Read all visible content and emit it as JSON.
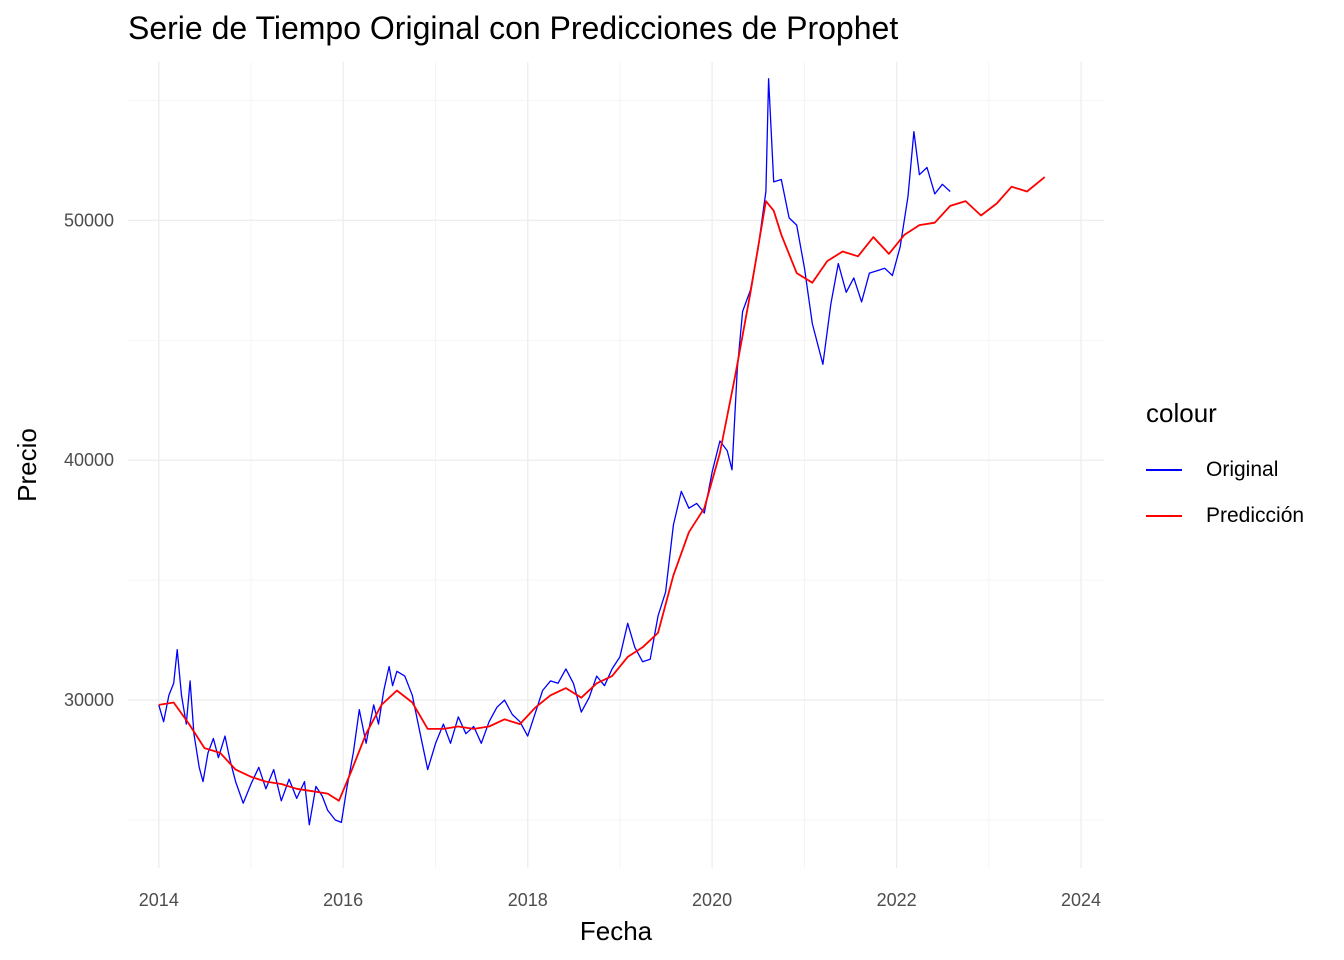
{
  "chart_data": {
    "type": "line",
    "title": "Serie de Tiempo Original con Predicciones de Prophet",
    "xlabel": "Fecha",
    "ylabel": "Precio",
    "x_ticks": [
      "2014",
      "2016",
      "2018",
      "2020",
      "2022",
      "2024"
    ],
    "y_ticks": [
      "30000",
      "40000",
      "50000"
    ],
    "xlim": [
      "2013-09-01",
      "2024-04-01"
    ],
    "ylim": [
      23000,
      56600
    ],
    "grid": true,
    "legend": {
      "title": "colour",
      "placement": "right"
    },
    "series": [
      {
        "name": "Original",
        "color": "#0000ff",
        "points": [
          [
            "2014-01-01",
            29800
          ],
          [
            "2014-01-20",
            29100
          ],
          [
            "2014-02-10",
            30200
          ],
          [
            "2014-03-01",
            30700
          ],
          [
            "2014-03-15",
            32100
          ],
          [
            "2014-04-01",
            30200
          ],
          [
            "2014-04-20",
            29000
          ],
          [
            "2014-05-05",
            30800
          ],
          [
            "2014-05-20",
            28600
          ],
          [
            "2014-06-10",
            27200
          ],
          [
            "2014-06-25",
            26600
          ],
          [
            "2014-07-15",
            27800
          ],
          [
            "2014-08-05",
            28400
          ],
          [
            "2014-08-25",
            27600
          ],
          [
            "2014-09-20",
            28500
          ],
          [
            "2014-10-10",
            27500
          ],
          [
            "2014-11-01",
            26600
          ],
          [
            "2014-12-01",
            25700
          ],
          [
            "2015-01-01",
            26500
          ],
          [
            "2015-02-01",
            27200
          ],
          [
            "2015-03-01",
            26300
          ],
          [
            "2015-04-01",
            27100
          ],
          [
            "2015-05-01",
            25800
          ],
          [
            "2015-06-01",
            26700
          ],
          [
            "2015-07-01",
            25900
          ],
          [
            "2015-08-01",
            26600
          ],
          [
            "2015-08-20",
            24800
          ],
          [
            "2015-09-15",
            26400
          ],
          [
            "2015-10-10",
            26000
          ],
          [
            "2015-11-01",
            25400
          ],
          [
            "2015-12-01",
            25000
          ],
          [
            "2015-12-25",
            24900
          ],
          [
            "2016-01-15",
            26300
          ],
          [
            "2016-02-10",
            27800
          ],
          [
            "2016-03-05",
            29600
          ],
          [
            "2016-04-01",
            28200
          ],
          [
            "2016-05-01",
            29800
          ],
          [
            "2016-05-20",
            29000
          ],
          [
            "2016-06-10",
            30400
          ],
          [
            "2016-07-01",
            31400
          ],
          [
            "2016-07-15",
            30600
          ],
          [
            "2016-08-01",
            31200
          ],
          [
            "2016-09-01",
            31000
          ],
          [
            "2016-10-01",
            30200
          ],
          [
            "2016-11-01",
            28600
          ],
          [
            "2016-12-01",
            27100
          ],
          [
            "2017-01-01",
            28200
          ],
          [
            "2017-02-01",
            29000
          ],
          [
            "2017-03-01",
            28200
          ],
          [
            "2017-04-01",
            29300
          ],
          [
            "2017-05-01",
            28600
          ],
          [
            "2017-06-01",
            28900
          ],
          [
            "2017-07-01",
            28200
          ],
          [
            "2017-08-01",
            29100
          ],
          [
            "2017-09-01",
            29700
          ],
          [
            "2017-10-01",
            30000
          ],
          [
            "2017-11-01",
            29400
          ],
          [
            "2017-12-01",
            29100
          ],
          [
            "2018-01-01",
            28500
          ],
          [
            "2018-02-01",
            29500
          ],
          [
            "2018-03-01",
            30400
          ],
          [
            "2018-04-01",
            30800
          ],
          [
            "2018-05-01",
            30700
          ],
          [
            "2018-06-01",
            31300
          ],
          [
            "2018-07-01",
            30700
          ],
          [
            "2018-08-01",
            29500
          ],
          [
            "2018-09-01",
            30100
          ],
          [
            "2018-10-01",
            31000
          ],
          [
            "2018-11-01",
            30600
          ],
          [
            "2018-12-01",
            31300
          ],
          [
            "2019-01-01",
            31800
          ],
          [
            "2019-02-01",
            33200
          ],
          [
            "2019-03-01",
            32200
          ],
          [
            "2019-04-01",
            31600
          ],
          [
            "2019-05-01",
            31700
          ],
          [
            "2019-06-01",
            33500
          ],
          [
            "2019-07-01",
            34500
          ],
          [
            "2019-08-01",
            37300
          ],
          [
            "2019-09-01",
            38700
          ],
          [
            "2019-10-01",
            38000
          ],
          [
            "2019-11-01",
            38200
          ],
          [
            "2019-12-01",
            37800
          ],
          [
            "2020-01-01",
            39500
          ],
          [
            "2020-02-01",
            40800
          ],
          [
            "2020-03-01",
            40400
          ],
          [
            "2020-03-20",
            39600
          ],
          [
            "2020-04-10",
            43800
          ],
          [
            "2020-05-01",
            46200
          ],
          [
            "2020-06-01",
            47100
          ],
          [
            "2020-07-01",
            48800
          ],
          [
            "2020-08-01",
            51200
          ],
          [
            "2020-08-12",
            55900
          ],
          [
            "2020-09-01",
            51600
          ],
          [
            "2020-10-01",
            51700
          ],
          [
            "2020-11-01",
            50100
          ],
          [
            "2020-12-01",
            49800
          ],
          [
            "2021-01-01",
            48000
          ],
          [
            "2021-02-01",
            45700
          ],
          [
            "2021-03-15",
            44000
          ],
          [
            "2021-04-15",
            46500
          ],
          [
            "2021-05-15",
            48200
          ],
          [
            "2021-06-15",
            47000
          ],
          [
            "2021-07-15",
            47600
          ],
          [
            "2021-08-15",
            46600
          ],
          [
            "2021-09-15",
            47800
          ],
          [
            "2021-10-15",
            47900
          ],
          [
            "2021-11-15",
            48000
          ],
          [
            "2021-12-15",
            47700
          ],
          [
            "2022-01-15",
            48900
          ],
          [
            "2022-02-15",
            51000
          ],
          [
            "2022-03-10",
            53700
          ],
          [
            "2022-04-01",
            51900
          ],
          [
            "2022-05-01",
            52200
          ],
          [
            "2022-06-01",
            51100
          ],
          [
            "2022-07-01",
            51500
          ],
          [
            "2022-08-01",
            51200
          ]
        ]
      },
      {
        "name": "Predicción",
        "color": "#ff0000",
        "points": [
          [
            "2014-01-01",
            29800
          ],
          [
            "2014-03-01",
            29900
          ],
          [
            "2014-05-01",
            29000
          ],
          [
            "2014-07-01",
            28000
          ],
          [
            "2014-09-01",
            27800
          ],
          [
            "2014-11-01",
            27100
          ],
          [
            "2015-01-01",
            26800
          ],
          [
            "2015-03-01",
            26600
          ],
          [
            "2015-05-01",
            26500
          ],
          [
            "2015-07-01",
            26300
          ],
          [
            "2015-09-01",
            26200
          ],
          [
            "2015-11-01",
            26100
          ],
          [
            "2015-12-15",
            25800
          ],
          [
            "2016-02-01",
            27000
          ],
          [
            "2016-04-01",
            28600
          ],
          [
            "2016-06-01",
            29800
          ],
          [
            "2016-08-01",
            30400
          ],
          [
            "2016-10-01",
            29900
          ],
          [
            "2016-12-01",
            28800
          ],
          [
            "2017-02-01",
            28800
          ],
          [
            "2017-04-01",
            28900
          ],
          [
            "2017-06-01",
            28800
          ],
          [
            "2017-08-01",
            28900
          ],
          [
            "2017-10-01",
            29200
          ],
          [
            "2017-12-01",
            29000
          ],
          [
            "2018-02-01",
            29700
          ],
          [
            "2018-04-01",
            30200
          ],
          [
            "2018-06-01",
            30500
          ],
          [
            "2018-08-01",
            30100
          ],
          [
            "2018-10-01",
            30700
          ],
          [
            "2018-12-01",
            31000
          ],
          [
            "2019-02-01",
            31800
          ],
          [
            "2019-04-01",
            32200
          ],
          [
            "2019-06-01",
            32800
          ],
          [
            "2019-08-01",
            35200
          ],
          [
            "2019-10-01",
            37000
          ],
          [
            "2019-12-01",
            38000
          ],
          [
            "2020-02-01",
            40300
          ],
          [
            "2020-04-01",
            43500
          ],
          [
            "2020-06-01",
            47000
          ],
          [
            "2020-08-01",
            50800
          ],
          [
            "2020-09-01",
            50400
          ],
          [
            "2020-10-01",
            49400
          ],
          [
            "2020-12-01",
            47800
          ],
          [
            "2021-02-01",
            47400
          ],
          [
            "2021-04-01",
            48300
          ],
          [
            "2021-06-01",
            48700
          ],
          [
            "2021-08-01",
            48500
          ],
          [
            "2021-10-01",
            49300
          ],
          [
            "2021-12-01",
            48600
          ],
          [
            "2022-02-01",
            49400
          ],
          [
            "2022-04-01",
            49800
          ],
          [
            "2022-06-01",
            49900
          ],
          [
            "2022-08-01",
            50600
          ],
          [
            "2022-10-01",
            50800
          ],
          [
            "2022-12-01",
            50200
          ],
          [
            "2023-02-01",
            50700
          ],
          [
            "2023-04-01",
            51400
          ],
          [
            "2023-06-01",
            51200
          ],
          [
            "2023-08-10",
            51800
          ]
        ]
      }
    ]
  }
}
